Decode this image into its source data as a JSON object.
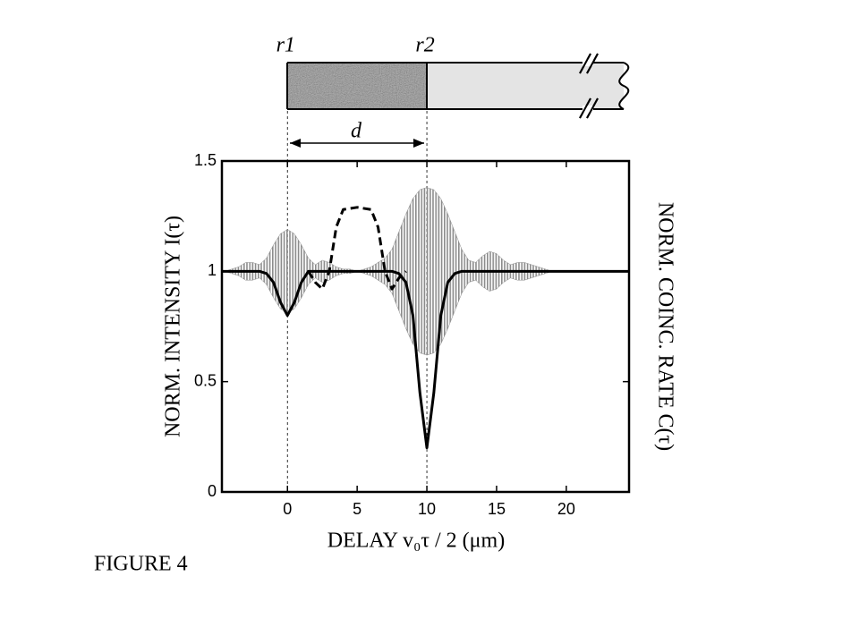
{
  "chart_data": {
    "type": "line",
    "figure_label": "FIGURE 4",
    "xlabel": "DELAY  v₀τ / 2 (μm)",
    "ylabel": "NORM. INTENSITY I(τ)",
    "y2label": "NORM. COINC. RATE C(τ)",
    "xlim": [
      -4.7,
      24.5
    ],
    "xticks": [
      0,
      5,
      10,
      15,
      20
    ],
    "ylim": [
      0,
      1.5
    ],
    "yticks": [
      0,
      0.5,
      1,
      1.5
    ],
    "markers": [
      {
        "x": 0,
        "label": "r1"
      },
      {
        "x": 10,
        "label": "r2"
      }
    ],
    "distance_label": "d",
    "series": [
      {
        "type": "band",
        "color": "#8c8c8c",
        "x": [
          -4.5,
          -4,
          -3.5,
          -3,
          -2.5,
          -2,
          -1.5,
          -1,
          -0.5,
          0,
          0.5,
          1,
          1.5,
          2,
          2.5,
          3,
          3.5,
          4,
          4.5,
          5,
          5.5,
          6,
          6.5,
          7,
          7.5,
          8,
          8.5,
          9,
          9.5,
          10,
          10.5,
          11,
          11.5,
          12,
          12.5,
          13,
          13.5,
          14,
          14.5,
          15,
          15.5,
          16,
          16.5,
          17,
          17.5,
          18,
          18.5,
          19
        ],
        "values": [
          1,
          1.01,
          1.02,
          1.04,
          1.04,
          1.03,
          1.06,
          1.12,
          1.17,
          1.19,
          1.17,
          1.12,
          1.06,
          1.03,
          1.05,
          1.04,
          1.02,
          1.01,
          1.01,
          1,
          1.01,
          1.02,
          1.04,
          1.06,
          1.1,
          1.18,
          1.26,
          1.33,
          1.37,
          1.38,
          1.37,
          1.33,
          1.26,
          1.18,
          1.1,
          1.05,
          1.04,
          1.07,
          1.09,
          1.08,
          1.05,
          1.03,
          1.04,
          1.04,
          1.03,
          1.02,
          1.01,
          1
        ],
        "lower": [
          1,
          0.99,
          0.98,
          0.96,
          0.96,
          0.97,
          0.94,
          0.88,
          0.83,
          0.81,
          0.83,
          0.88,
          0.94,
          0.97,
          0.95,
          0.96,
          0.98,
          0.99,
          0.99,
          1,
          0.99,
          0.98,
          0.96,
          0.94,
          0.9,
          0.82,
          0.74,
          0.67,
          0.63,
          0.62,
          0.63,
          0.67,
          0.74,
          0.82,
          0.9,
          0.95,
          0.96,
          0.93,
          0.91,
          0.92,
          0.95,
          0.97,
          0.96,
          0.96,
          0.97,
          0.98,
          0.99,
          1
        ]
      },
      {
        "color": "#000000",
        "x": [
          -4.7,
          -2,
          -1.5,
          -1,
          -0.5,
          0,
          0.5,
          1,
          1.5,
          2,
          7.5,
          8,
          8.5,
          9,
          9.5,
          10,
          10.5,
          11,
          11.5,
          12,
          12.5,
          24.5
        ],
        "values": [
          1,
          1,
          0.99,
          0.95,
          0.86,
          0.8,
          0.86,
          0.95,
          1,
          1,
          1,
          0.99,
          0.95,
          0.8,
          0.45,
          0.2,
          0.45,
          0.8,
          0.95,
          0.99,
          1,
          1
        ]
      },
      {
        "color": "#000000",
        "dash": true,
        "x": [
          1.5,
          2,
          2.5,
          3,
          3.5,
          4,
          5,
          6,
          6.5,
          7,
          7.5,
          8,
          8.5
        ],
        "values": [
          1,
          0.95,
          0.92,
          1,
          1.2,
          1.28,
          1.29,
          1.28,
          1.2,
          1,
          0.92,
          0.97,
          1
        ]
      }
    ]
  }
}
